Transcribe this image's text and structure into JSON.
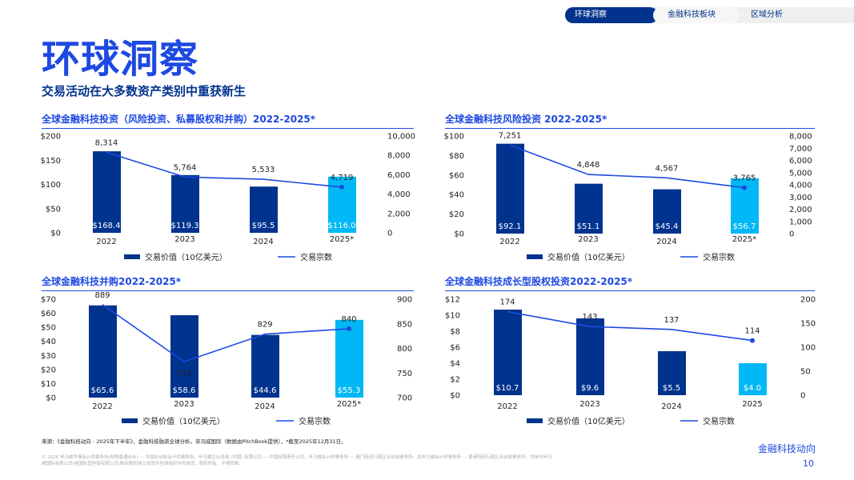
{
  "tabs": [
    "环球洞察",
    "金融科技板块",
    "区域分析"
  ],
  "title": "环球洞察",
  "subtitle": "交易活动在大多数资产类别中重获新生",
  "colors": {
    "bar": "#00338D",
    "bar_highlight": "#00B8F5",
    "line": "#1E49E2",
    "accent": "#1E49E2"
  },
  "chart_data": [
    {
      "type": "bar+line",
      "title": "全球金融科技投资（风险投资、私募股权和并购）2022-2025*",
      "categories": [
        "2022",
        "2023",
        "2024",
        "2025*"
      ],
      "series": [
        {
          "name": "交易价值（10亿美元）",
          "type": "bar",
          "values": [
            168.4,
            119.3,
            95.5,
            116.0
          ],
          "labels": [
            "$168.4",
            "$119.3",
            "$95.5",
            "$116.0"
          ]
        },
        {
          "name": "交易宗数",
          "type": "line",
          "values": [
            8314,
            5764,
            5533,
            4719
          ],
          "labels": [
            "8,314",
            "5,764",
            "5,533",
            "4,719"
          ]
        }
      ],
      "y_left": {
        "ticks": [
          "$0",
          "$50",
          "$100",
          "$150",
          "$200"
        ],
        "range": [
          0,
          200
        ]
      },
      "y_right": {
        "ticks": [
          "0",
          "2,000",
          "4,000",
          "6,000",
          "8,000",
          "10,000"
        ],
        "range": [
          0,
          10000
        ]
      }
    },
    {
      "type": "bar+line",
      "title": "全球金融科技风险投资 2022-2025*",
      "categories": [
        "2022",
        "2023",
        "2024",
        "2025*"
      ],
      "series": [
        {
          "name": "交易价值（10亿美元）",
          "type": "bar",
          "values": [
            92.1,
            51.1,
            45.4,
            56.7
          ],
          "labels": [
            "$92.1",
            "$51.1",
            "$45.4",
            "$56.7"
          ]
        },
        {
          "name": "交易宗数",
          "type": "line",
          "values": [
            7251,
            4848,
            4567,
            3765
          ],
          "labels": [
            "7,251",
            "4,848",
            "4,567",
            "3,765"
          ]
        }
      ],
      "y_left": {
        "ticks": [
          "$0",
          "$20",
          "$40",
          "$60",
          "$80",
          "$100"
        ],
        "range": [
          0,
          100
        ]
      },
      "y_right": {
        "ticks": [
          "0",
          "1,000",
          "2,000",
          "3,000",
          "4,000",
          "5,000",
          "6,000",
          "7,000",
          "8,000"
        ],
        "range": [
          0,
          8000
        ]
      }
    },
    {
      "type": "bar+line",
      "title": "全球金融科技并购2022-2025*",
      "categories": [
        "2022",
        "2023",
        "2024",
        "2025*"
      ],
      "series": [
        {
          "name": "交易价值（10亿美元）",
          "type": "bar",
          "values": [
            65.6,
            58.6,
            44.6,
            55.3
          ],
          "labels": [
            "$65.6",
            "$58.6",
            "$44.6",
            "$55.3"
          ]
        },
        {
          "name": "交易宗数",
          "type": "line",
          "values": [
            889,
            773,
            829,
            840
          ],
          "labels": [
            "889",
            "773",
            "829",
            "840"
          ]
        }
      ],
      "y_left": {
        "ticks": [
          "$0",
          "$10",
          "$20",
          "$30",
          "$40",
          "$50",
          "$60",
          "$70"
        ],
        "range": [
          0,
          70
        ]
      },
      "y_right": {
        "ticks": [
          "700",
          "750",
          "800",
          "850",
          "900"
        ],
        "range": [
          700,
          900
        ]
      }
    },
    {
      "type": "bar+line",
      "title": "全球金融科技成长型股权投资2022-2025*",
      "categories": [
        "2022",
        "2023",
        "2024",
        "2025"
      ],
      "series": [
        {
          "name": "交易价值（10亿美元）",
          "type": "bar",
          "values": [
            10.7,
            9.6,
            5.5,
            4.0
          ],
          "labels": [
            "$10.7",
            "$9.6",
            "$5.5",
            "$4.0"
          ]
        },
        {
          "name": "交易宗数",
          "type": "line",
          "values": [
            174,
            143,
            137,
            114
          ],
          "labels": [
            "174",
            "143",
            "137",
            "114"
          ]
        }
      ],
      "y_left": {
        "ticks": [
          "$0",
          "$2",
          "$4",
          "$6",
          "$8",
          "$10",
          "$12"
        ],
        "range": [
          0,
          12
        ]
      },
      "y_right": {
        "ticks": [
          "0",
          "50",
          "100",
          "150",
          "200"
        ],
        "range": [
          0,
          200
        ]
      }
    }
  ],
  "footer": {
    "source": "来源：《金融科技动向 - 2025年下半年》，金融科技融资全球分析，毕马威国际（数据由PitchBook提供），*截至2025年12月31日。",
    "legal": "© 2026 毕马威华振会计师事务所(特殊普通合伙) — 中国合伙制会计师事务所，毕马威企业咨询 (中国) 有限公司 — 中国有限责任公司，毕马威会计师事务所 — 澳门特别行政区合伙制事务所，及毕马威会计师事务所 — 香港特别行政区合伙制事务所，均是与毕马威国际有限公司(英国私营担保有限公司)相关联的独立成员所全球组织中的成员。版权所有，不得转载。",
    "brand": "金融科技动向",
    "page": "10"
  }
}
